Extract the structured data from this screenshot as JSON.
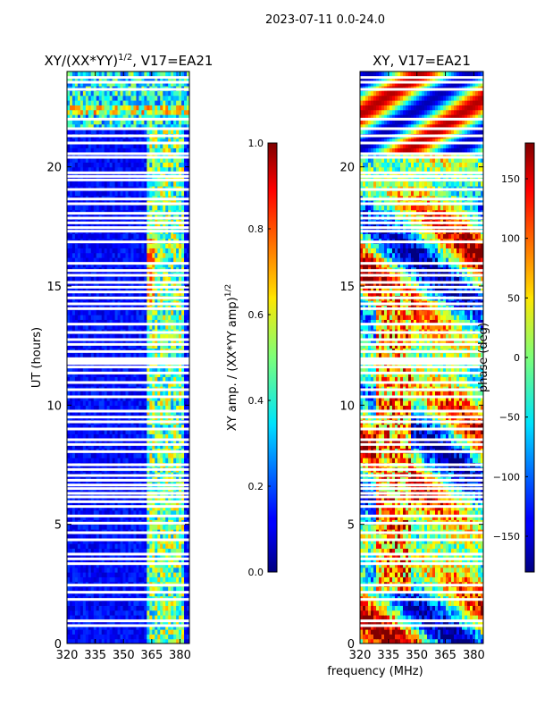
{
  "suptitle": "2023-07-11 0.0-24.0",
  "colors": {
    "background": "#000080",
    "gap": "#ffffff"
  },
  "chart_data": [
    {
      "type": "heatmap",
      "title_main": "XY/(XX*YY)",
      "title_sup": "1/2",
      "title_tail": ", V17=EA21",
      "xlabel": "",
      "ylabel": "UT (hours)",
      "xlim": [
        320,
        385
      ],
      "ylim": [
        0,
        24
      ],
      "xticks": [
        "320",
        "335",
        "350",
        "365",
        "380"
      ],
      "yticks": [
        "0",
        "5",
        "10",
        "15",
        "20"
      ],
      "colorbar": {
        "label_main": "XY amp. / (XX*YY amp)",
        "label_sup": "1/2",
        "range": [
          0.0,
          1.0
        ],
        "ticks": [
          "0.0",
          "0.2",
          "0.4",
          "0.6",
          "0.8",
          "1.0"
        ]
      }
    },
    {
      "type": "heatmap",
      "title": "XY, V17=EA21",
      "xlabel": "frequency (MHz)",
      "ylabel": "",
      "xlim": [
        320,
        385
      ],
      "ylim": [
        0,
        24
      ],
      "xticks": [
        "320",
        "335",
        "350",
        "365",
        "380"
      ],
      "yticks": [
        "0",
        "5",
        "10",
        "15",
        "20"
      ],
      "colorbar": {
        "label": "phase (deg)",
        "range": [
          -180,
          180
        ],
        "ticks": [
          "-150",
          "-100",
          "-50",
          "0",
          "50",
          "100",
          "150"
        ]
      }
    }
  ],
  "flagged_hours": [
    0.75,
    0.95,
    1.85,
    2.15,
    2.45,
    3.35,
    3.55,
    3.75,
    4.35,
    4.65,
    5.05,
    5.35,
    5.75,
    5.95,
    6.15,
    6.3,
    6.5,
    6.65,
    6.85,
    7.05,
    7.3,
    7.5,
    8.05,
    8.35,
    8.55,
    9.0,
    9.3,
    9.5,
    9.75,
    10.35,
    10.65,
    10.95,
    11.35,
    11.6,
    11.75,
    11.85,
    11.95,
    12.25,
    12.55,
    12.75,
    13.05,
    13.4,
    14.05,
    14.25,
    14.5,
    14.75,
    14.95,
    15.15,
    15.45,
    15.65,
    15.95,
    16.85,
    17.3,
    17.45,
    17.65,
    17.85,
    18.05,
    18.45,
    18.65,
    19.05,
    19.45,
    19.6,
    19.75,
    20.4,
    20.55,
    21.0,
    21.3,
    21.6,
    22.0,
    23.25,
    23.55,
    23.75
  ]
}
